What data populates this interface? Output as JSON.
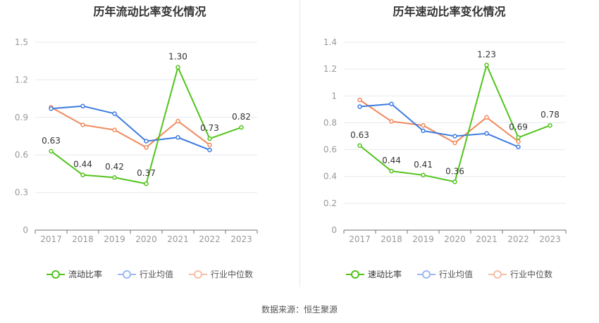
{
  "source_text": "数据来源：恒生聚源",
  "colors": {
    "series1": "#52c41a",
    "series2": "#3d7be0",
    "series3": "#f08a5d",
    "axis": "#999999",
    "grid": "#e6e9f0",
    "label": "#333333"
  },
  "chart_data": [
    {
      "type": "line",
      "title": "历年流动比率变化情况",
      "x": [
        "2017",
        "2018",
        "2019",
        "2020",
        "2021",
        "2022",
        "2023"
      ],
      "ylim": [
        0,
        1.5
      ],
      "yticks": [
        "0",
        "0.3",
        "0.6",
        "0.9",
        "1.2",
        "1.5"
      ],
      "ytick_values": [
        0,
        0.3,
        0.6,
        0.9,
        1.2,
        1.5
      ],
      "series": [
        {
          "name": "流动比率",
          "values": [
            0.63,
            0.44,
            0.42,
            0.37,
            1.3,
            0.73,
            0.82
          ],
          "labels": [
            "0.63",
            "0.44",
            "0.42",
            "0.37",
            "1.30",
            "0.73",
            "0.82"
          ]
        },
        {
          "name": "行业均值",
          "values": [
            0.97,
            0.99,
            0.93,
            0.71,
            0.74,
            0.64,
            null
          ]
        },
        {
          "name": "行业中位数",
          "values": [
            0.98,
            0.84,
            0.8,
            0.66,
            0.87,
            0.68,
            null
          ]
        }
      ],
      "legend": "bottom",
      "grid": true
    },
    {
      "type": "line",
      "title": "历年速动比率变化情况",
      "x": [
        "2017",
        "2018",
        "2019",
        "2020",
        "2021",
        "2022",
        "2023"
      ],
      "ylim": [
        0,
        1.4
      ],
      "yticks": [
        "0",
        "0.2",
        "0.4",
        "0.6",
        "0.8",
        "1",
        "1.2",
        "1.4"
      ],
      "ytick_values": [
        0,
        0.2,
        0.4,
        0.6,
        0.8,
        1.0,
        1.2,
        1.4
      ],
      "series": [
        {
          "name": "速动比率",
          "values": [
            0.63,
            0.44,
            0.41,
            0.36,
            1.23,
            0.69,
            0.78
          ],
          "labels": [
            "0.63",
            "0.44",
            "0.41",
            "0.36",
            "1.23",
            "0.69",
            "0.78"
          ]
        },
        {
          "name": "行业均值",
          "values": [
            0.92,
            0.94,
            0.74,
            0.7,
            0.72,
            0.62,
            null
          ]
        },
        {
          "name": "行业中位数",
          "values": [
            0.97,
            0.81,
            0.78,
            0.65,
            0.84,
            0.66,
            null
          ]
        }
      ],
      "legend": "bottom",
      "grid": true
    }
  ]
}
